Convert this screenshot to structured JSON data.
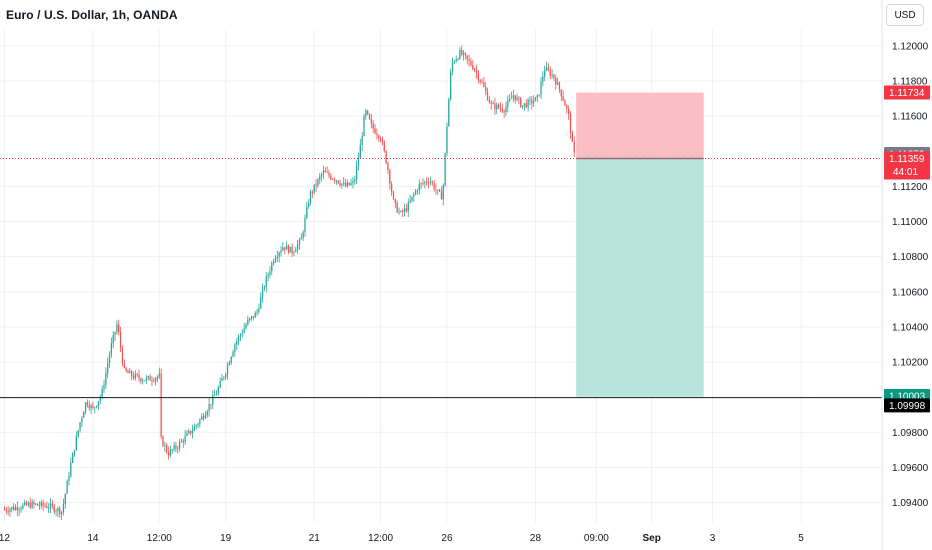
{
  "header": {
    "title": "Euro / U.S. Dollar, 1h, OANDA",
    "currency_button": "USD"
  },
  "colors": {
    "up": "#26a69a",
    "down": "#ef5350",
    "stop_zone": "#f9b7bd",
    "target_zone": "#b3e1d8",
    "grid": "#eef0f3",
    "current_price_tag": "#787b86",
    "bid_tag": "#f23645",
    "target_tag": "#089981",
    "level_tag": "#000000"
  },
  "chart_data": {
    "type": "candlestick",
    "symbol": "Euro / U.S. Dollar",
    "interval": "1h",
    "exchange": "OANDA",
    "x_ticks": [
      {
        "label": "12",
        "x": 12
      },
      {
        "label": "14",
        "x": 14
      },
      {
        "label": "12:00",
        "x": 15.5
      },
      {
        "label": "19",
        "x": 17
      },
      {
        "label": "21",
        "x": 19
      },
      {
        "label": "12:00",
        "x": 20.5
      },
      {
        "label": "26",
        "x": 22
      },
      {
        "label": "28",
        "x": 24
      },
      {
        "label": "09:00",
        "x": 25.375
      },
      {
        "label": "Sep",
        "x": 26.625
      },
      {
        "label": "3",
        "x": 28
      },
      {
        "label": "5",
        "x": 30
      }
    ],
    "x_range": [
      11.9,
      31.83
    ],
    "y_ticks": [
      "1.12000",
      "1.11800",
      "1.11600",
      "1.11200",
      "1.11000",
      "1.10800",
      "1.10600",
      "1.10400",
      "1.10200",
      "1.09800",
      "1.09600",
      "1.09400"
    ],
    "y_range": [
      1.0929,
      1.1209
    ],
    "price_path": [
      [
        12.0,
        1.0936
      ],
      [
        12.6,
        1.0939
      ],
      [
        13.0,
        1.0938
      ],
      [
        13.3,
        1.0935
      ],
      [
        13.5,
        1.0962
      ],
      [
        13.7,
        1.0985
      ],
      [
        13.85,
        1.0998
      ],
      [
        14.0,
        1.0993
      ],
      [
        14.2,
        1.1002
      ],
      [
        14.4,
        1.1028
      ],
      [
        14.55,
        1.1042
      ],
      [
        14.7,
        1.1015
      ],
      [
        14.9,
        1.1012
      ],
      [
        15.2,
        1.101
      ],
      [
        15.5,
        1.1012
      ],
      [
        15.5,
        1.0978
      ],
      [
        15.7,
        1.0968
      ],
      [
        15.9,
        1.0972
      ],
      [
        16.3,
        1.0983
      ],
      [
        16.5,
        1.099
      ],
      [
        16.8,
        1.1003
      ],
      [
        17.0,
        1.1015
      ],
      [
        17.2,
        1.103
      ],
      [
        17.5,
        1.1043
      ],
      [
        17.7,
        1.1048
      ],
      [
        17.9,
        1.1066
      ],
      [
        18.1,
        1.108
      ],
      [
        18.3,
        1.1086
      ],
      [
        18.5,
        1.1083
      ],
      [
        18.7,
        1.1089
      ],
      [
        18.9,
        1.1115
      ],
      [
        19.2,
        1.1128
      ],
      [
        19.5,
        1.1124
      ],
      [
        19.7,
        1.112
      ],
      [
        19.9,
        1.1122
      ],
      [
        20.05,
        1.1144
      ],
      [
        20.15,
        1.1163
      ],
      [
        20.3,
        1.1154
      ],
      [
        20.5,
        1.1148
      ],
      [
        20.65,
        1.1132
      ],
      [
        20.8,
        1.111
      ],
      [
        20.95,
        1.1104
      ],
      [
        21.1,
        1.1108
      ],
      [
        21.35,
        1.112
      ],
      [
        21.6,
        1.1124
      ],
      [
        21.8,
        1.1116
      ],
      [
        21.9,
        1.1114
      ],
      [
        22.0,
        1.1155
      ],
      [
        22.1,
        1.119
      ],
      [
        22.3,
        1.1196
      ],
      [
        22.6,
        1.1188
      ],
      [
        22.8,
        1.1178
      ],
      [
        23.0,
        1.1166
      ],
      [
        23.3,
        1.1164
      ],
      [
        23.5,
        1.1172
      ],
      [
        23.7,
        1.1166
      ],
      [
        23.9,
        1.1168
      ],
      [
        24.05,
        1.117
      ],
      [
        24.2,
        1.1187
      ],
      [
        24.4,
        1.1183
      ],
      [
        24.6,
        1.1172
      ],
      [
        24.75,
        1.116
      ],
      [
        24.85,
        1.114
      ],
      [
        24.9,
        1.1136
      ]
    ],
    "position": {
      "type": "short",
      "start_x": 24.92,
      "end_x": 27.8,
      "entry": 1.11359,
      "stop": 1.11734,
      "target": 1.10003
    },
    "horizontal_line": 1.09998,
    "price_labels": {
      "stop_price": "1.11734",
      "current_price": "1.11372",
      "bid_price": "1.11359",
      "countdown": "44:01",
      "target_price": "1.10003",
      "line_price": "1.09998"
    }
  }
}
